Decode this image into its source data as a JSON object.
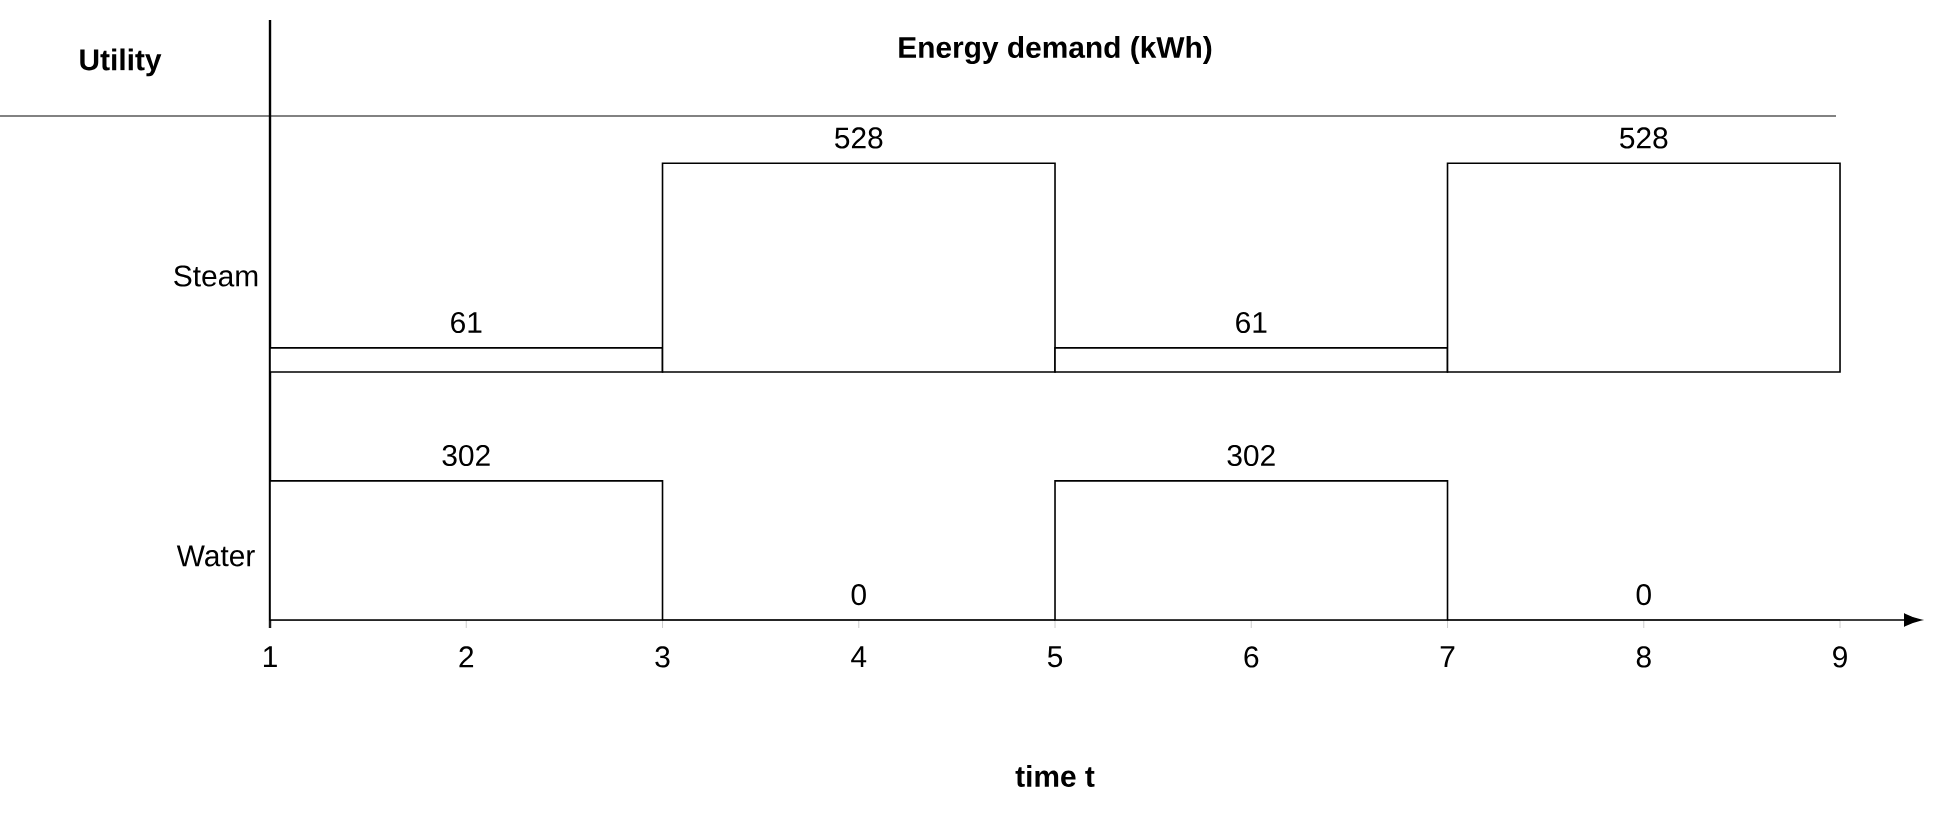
{
  "chart_data": [
    {
      "type": "bar",
      "title": "Energy demand (kWh)",
      "annotations": [
        "Utility"
      ],
      "ylabel": "Steam",
      "x": [
        2,
        4,
        6,
        8
      ],
      "values": [
        61,
        528,
        61,
        528
      ],
      "color": "#000000",
      "data_labels": true,
      "xlim": [
        1,
        9
      ],
      "xticks": [
        1,
        2,
        3,
        4,
        5,
        6,
        7,
        8,
        9
      ],
      "tick_labels": false
    },
    {
      "type": "bar",
      "ylabel": "Water",
      "xlabel": "time t",
      "x": [
        2,
        4,
        6,
        8
      ],
      "values": [
        302,
        0,
        302,
        0
      ],
      "color": "#000000",
      "data_labels": true,
      "xlim": [
        1,
        9
      ],
      "xticks": [
        1,
        2,
        3,
        4,
        5,
        6,
        7,
        8,
        9
      ],
      "tick_labels": "x"
    }
  ]
}
